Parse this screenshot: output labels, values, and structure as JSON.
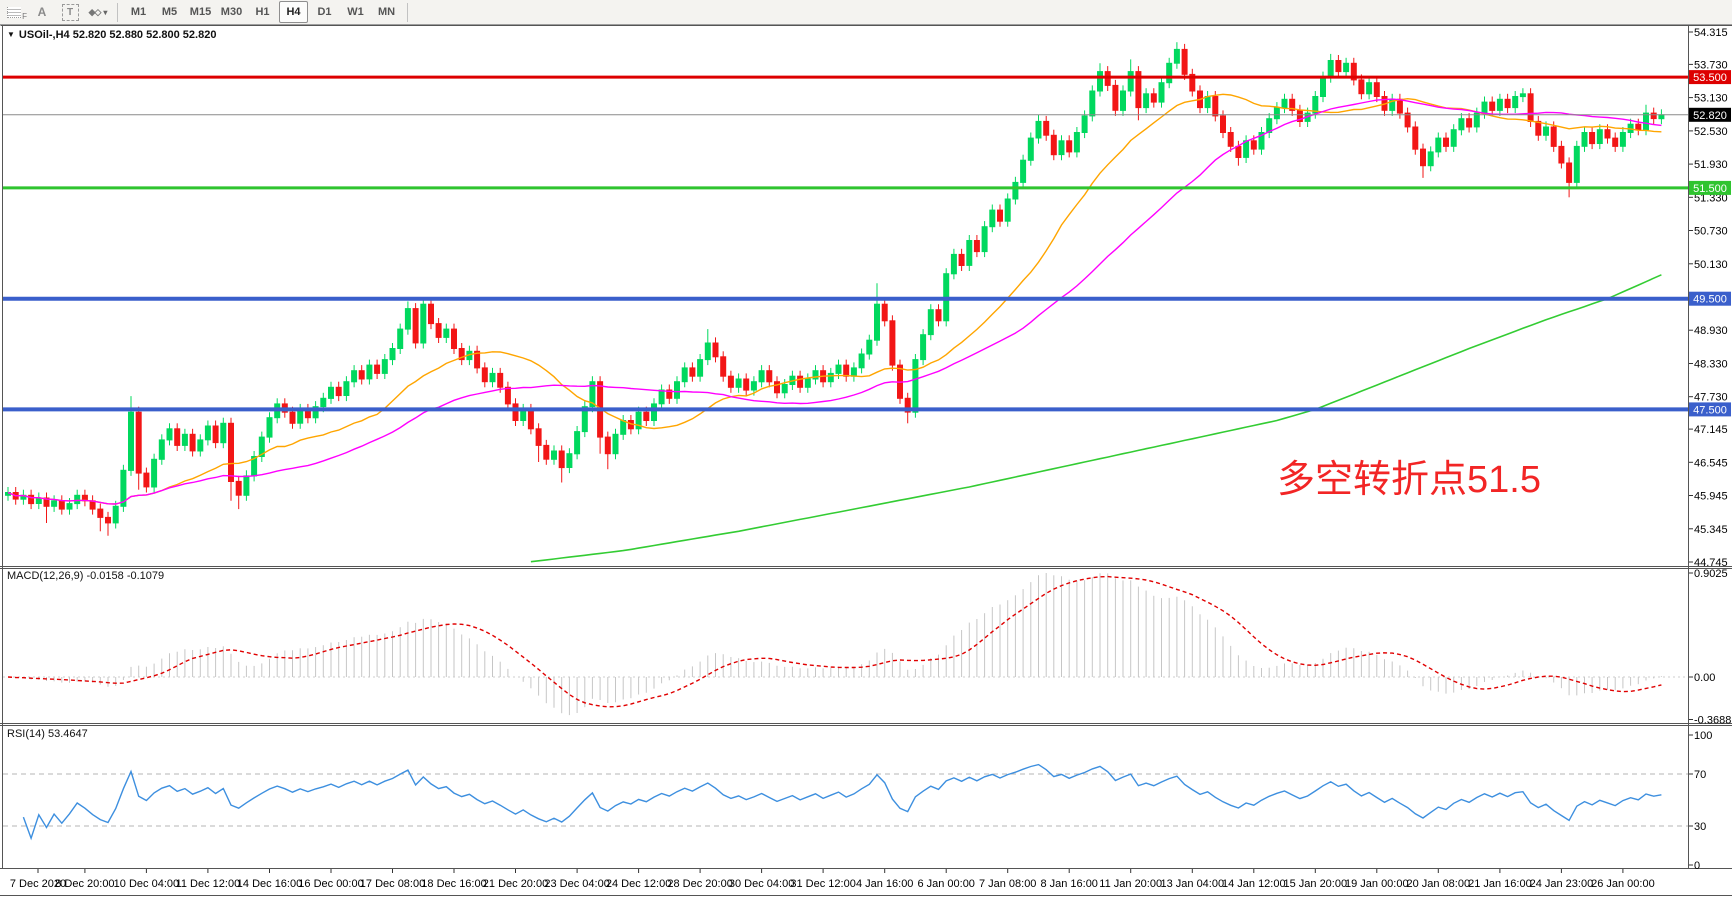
{
  "toolbar": {
    "tools": [
      {
        "name": "frame-tool",
        "label": "F"
      },
      {
        "name": "font-tool",
        "label": "A"
      },
      {
        "name": "text-tool",
        "label": "T"
      },
      {
        "name": "cursor-tool",
        "label": "▾"
      }
    ],
    "timeframes": [
      "M1",
      "M5",
      "M15",
      "M30",
      "H1",
      "H4",
      "D1",
      "W1",
      "MN"
    ],
    "active_timeframe": "H4"
  },
  "chart": {
    "collapse_glyph": "▼",
    "title": "USOil-,H4  52.820 52.880 52.800 52.820",
    "macd_label": "MACD(12,26,9) -0.0158 -0.1079",
    "rsi_label": "RSI(14) 53.4647",
    "annotation": {
      "text": "多空转折点51.5",
      "color": "#f22525"
    }
  },
  "chart_data": {
    "type": "candlestick",
    "symbol": "USOil-",
    "timeframe": "H4",
    "current_ohlc": {
      "open": 52.82,
      "high": 52.88,
      "low": 52.8,
      "close": 52.82
    },
    "price_axis": {
      "top_price": 54.315,
      "bottom_price": 44.745,
      "ticks": [
        "54.315",
        "53.730",
        "53.130",
        "52.530",
        "51.930",
        "51.330",
        "50.730",
        "50.130",
        "48.930",
        "48.330",
        "47.730",
        "47.145",
        "46.545",
        "45.945",
        "45.345",
        "44.745"
      ]
    },
    "hlines": [
      {
        "price": 53.5,
        "label": "53.500",
        "color": "#dd0000",
        "width": 3,
        "badge_bg": "#dd0000"
      },
      {
        "price": 52.82,
        "label": "52.820",
        "color": "#8a8a8a",
        "width": 1,
        "badge_bg": "#000000"
      },
      {
        "price": 51.5,
        "label": "51.500",
        "color": "#2fc42f",
        "width": 3,
        "badge_bg": "#2fc42f"
      },
      {
        "price": 49.5,
        "label": "49.500",
        "color": "#3a5fcb",
        "width": 4,
        "badge_bg": "#3a5fcb"
      },
      {
        "price": 47.5,
        "label": "47.500",
        "color": "#3a5fcb",
        "width": 4,
        "badge_bg": "#3a5fcb"
      }
    ],
    "time_labels": [
      "7 Dec 2020",
      "8 Dec 20:00",
      "10 Dec 04:00",
      "11 Dec 12:00",
      "14 Dec 16:00",
      "16 Dec 00:00",
      "17 Dec 08:00",
      "18 Dec 16:00",
      "21 Dec 20:00",
      "23 Dec 04:00",
      "24 Dec 12:00",
      "28 Dec 20:00",
      "30 Dec 04:00",
      "31 Dec 12:00",
      "4 Jan 16:00",
      "6 Jan 00:00",
      "7 Jan 08:00",
      "8 Jan 16:00",
      "11 Jan 20:00",
      "13 Jan 04:00",
      "14 Jan 12:00",
      "15 Jan 20:00",
      "19 Jan 00:00",
      "20 Jan 08:00",
      "21 Jan 16:00",
      "24 Jan 23:00",
      "26 Jan 00:00"
    ],
    "bars_per_label": 8,
    "first_label_bar": 2,
    "candles": {
      "count": 216,
      "first_open": 45.95,
      "opens_rule": "previous_close",
      "default_wick": 0.1,
      "closes": [
        46.0,
        45.88,
        45.95,
        45.8,
        45.9,
        45.75,
        45.85,
        45.7,
        45.8,
        45.95,
        45.85,
        45.7,
        45.55,
        45.45,
        45.75,
        46.4,
        47.45,
        46.35,
        46.1,
        46.6,
        46.95,
        47.15,
        46.85,
        47.05,
        46.75,
        46.95,
        47.2,
        46.9,
        47.25,
        46.2,
        45.95,
        46.3,
        46.65,
        47.0,
        47.35,
        47.6,
        47.45,
        47.25,
        47.5,
        47.35,
        47.55,
        47.7,
        47.9,
        47.75,
        48.0,
        48.2,
        48.05,
        48.3,
        48.15,
        48.4,
        48.6,
        48.95,
        49.32,
        48.7,
        49.4,
        49.05,
        48.8,
        48.95,
        48.6,
        48.4,
        48.55,
        48.25,
        48.0,
        48.15,
        47.9,
        47.6,
        47.3,
        47.5,
        47.15,
        46.85,
        46.6,
        46.75,
        46.45,
        46.7,
        47.1,
        47.55,
        48.0,
        47.0,
        46.7,
        47.05,
        47.3,
        47.15,
        47.45,
        47.3,
        47.6,
        47.85,
        47.7,
        48.0,
        48.25,
        48.1,
        48.4,
        48.7,
        48.45,
        48.1,
        47.9,
        48.05,
        47.85,
        48.0,
        48.2,
        48.0,
        47.8,
        47.95,
        48.1,
        47.9,
        48.05,
        48.2,
        48.0,
        48.15,
        48.3,
        48.1,
        48.25,
        48.5,
        48.75,
        49.4,
        49.1,
        48.3,
        47.7,
        47.45,
        48.4,
        48.85,
        49.3,
        49.1,
        49.95,
        50.3,
        50.1,
        50.55,
        50.35,
        50.8,
        51.1,
        50.9,
        51.3,
        51.6,
        52.0,
        52.4,
        52.7,
        52.45,
        52.1,
        52.35,
        52.15,
        52.5,
        52.8,
        53.25,
        53.6,
        53.35,
        52.9,
        53.25,
        53.6,
        52.95,
        53.2,
        53.05,
        53.4,
        53.75,
        54.0,
        53.55,
        53.25,
        52.95,
        53.15,
        52.8,
        52.5,
        52.25,
        52.05,
        52.35,
        52.2,
        52.5,
        52.75,
        52.95,
        53.1,
        52.9,
        52.7,
        52.85,
        53.15,
        53.5,
        53.8,
        53.6,
        53.75,
        53.45,
        53.2,
        53.4,
        53.15,
        52.9,
        53.1,
        52.85,
        52.6,
        52.2,
        51.9,
        52.15,
        52.4,
        52.25,
        52.55,
        52.75,
        52.6,
        52.85,
        53.05,
        52.9,
        53.1,
        52.95,
        53.15,
        53.2,
        52.7,
        52.45,
        52.6,
        52.25,
        51.95,
        51.6,
        52.25,
        52.5,
        52.3,
        52.55,
        52.4,
        52.25,
        52.5,
        52.65,
        52.55,
        52.85,
        52.75,
        52.82
      ],
      "extreme_overrides": {
        "5": {
          "l": 45.45
        },
        "12": {
          "l": 45.3
        },
        "13": {
          "l": 45.22
        },
        "16": {
          "h": 47.74
        },
        "17": {
          "l": 46.05
        },
        "29": {
          "l": 45.85
        },
        "30": {
          "l": 45.7
        },
        "52": {
          "h": 49.45
        },
        "54": {
          "h": 49.47
        },
        "69": {
          "l": 46.55
        },
        "72": {
          "l": 46.18
        },
        "77": {
          "l": 46.7
        },
        "78": {
          "l": 46.42
        },
        "91": {
          "h": 48.95
        },
        "113": {
          "h": 49.78
        },
        "117": {
          "l": 47.25
        },
        "134": {
          "h": 52.82
        },
        "142": {
          "h": 53.75
        },
        "146": {
          "h": 53.82
        },
        "147": {
          "l": 52.72
        },
        "152": {
          "h": 54.13
        },
        "160": {
          "l": 51.9
        },
        "172": {
          "h": 53.92
        },
        "184": {
          "l": 51.68
        },
        "203": {
          "l": 51.33
        },
        "213": {
          "h": 53.0
        }
      }
    },
    "overlays": [
      {
        "name": "ma-fast",
        "type": "sma",
        "period": 20,
        "color": "#ffa500"
      },
      {
        "name": "ma-slow",
        "type": "sma",
        "period": 40,
        "color": "#ff00ff"
      },
      {
        "name": "ma-long",
        "type": "anchors",
        "color": "#33cc33",
        "anchors": [
          [
            68,
            44.75
          ],
          [
            80,
            44.95
          ],
          [
            95,
            45.3
          ],
          [
            110,
            45.7
          ],
          [
            125,
            46.1
          ],
          [
            140,
            46.55
          ],
          [
            155,
            47.0
          ],
          [
            165,
            47.3
          ],
          [
            170,
            47.5
          ],
          [
            180,
            48.05
          ],
          [
            190,
            48.6
          ],
          [
            200,
            49.12
          ],
          [
            208,
            49.5
          ],
          [
            215,
            49.93
          ]
        ]
      }
    ],
    "colors": {
      "bull": "#00d85e",
      "bear": "#f21616",
      "background": "#ffffff",
      "axis_text": "#000000"
    },
    "macd": {
      "fast": 12,
      "slow": 26,
      "signal": 9,
      "value_main": -0.0158,
      "value_signal": -0.1079,
      "axis_ticks": [
        "0.9025",
        "0.00",
        "-0.3688"
      ],
      "axis_max": 0.9025,
      "axis_min": -0.3688,
      "histogram_color": "#c6c6c6",
      "signal_color": "#e00000"
    },
    "rsi": {
      "period": 14,
      "value": 53.4647,
      "axis_ticks": [
        "100",
        "70",
        "30",
        "0"
      ],
      "levels": [
        70,
        30
      ],
      "color": "#3d8fdf",
      "level_color": "#b5b5b5"
    }
  }
}
